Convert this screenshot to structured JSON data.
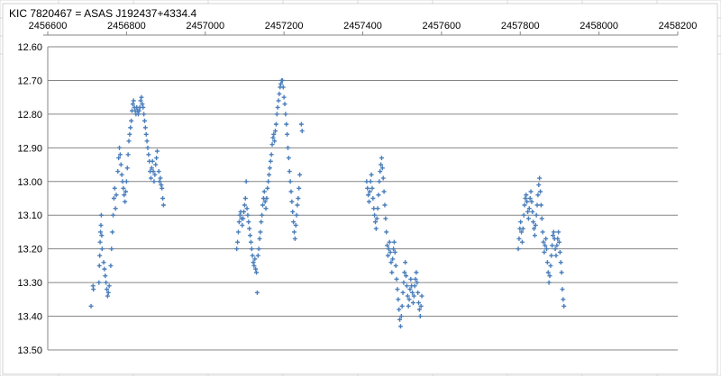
{
  "chart_data": {
    "type": "scatter",
    "title": "KIC 7820467 = ASAS J192437+4334.4",
    "xlabel": "",
    "ylabel": "",
    "xlim": [
      2456600,
      2458200
    ],
    "ylim": [
      12.6,
      13.5
    ],
    "y_inverted": true,
    "x_axis_position": "top",
    "grid": "horizontal",
    "legend": "none",
    "x_ticks": [
      "2456600",
      "2456800",
      "2457000",
      "2457200",
      "2457400",
      "2457600",
      "2457800",
      "2458000",
      "2458200"
    ],
    "y_ticks": [
      "12.60",
      "12.70",
      "12.80",
      "12.90",
      "13.00",
      "13.10",
      "13.20",
      "13.30",
      "13.40",
      "13.50"
    ],
    "colors": {
      "marker": "#4a7ebb",
      "grid": "#868686",
      "axis": "#868686",
      "sheet_grid": "#d9d9d9"
    },
    "series": [
      {
        "marker": "plus",
        "points": [
          [
            2456710,
            13.37
          ],
          [
            2456715,
            13.31
          ],
          [
            2456716,
            13.32
          ],
          [
            2456730,
            13.3
          ],
          [
            2456731,
            13.25
          ],
          [
            2456732,
            13.22
          ],
          [
            2456733,
            13.18
          ],
          [
            2456734,
            13.15
          ],
          [
            2456735,
            13.13
          ],
          [
            2456736,
            13.1
          ],
          [
            2456737,
            13.16
          ],
          [
            2456738,
            13.2
          ],
          [
            2456742,
            13.24
          ],
          [
            2456744,
            13.26
          ],
          [
            2456746,
            13.28
          ],
          [
            2456748,
            13.3
          ],
          [
            2456750,
            13.32
          ],
          [
            2456752,
            13.34
          ],
          [
            2456754,
            13.33
          ],
          [
            2456756,
            13.31
          ],
          [
            2456760,
            13.25
          ],
          [
            2456762,
            13.2
          ],
          [
            2456764,
            13.15
          ],
          [
            2456766,
            13.1
          ],
          [
            2456768,
            13.05
          ],
          [
            2456770,
            13.02
          ],
          [
            2456772,
            13.08
          ],
          [
            2456774,
            13.04
          ],
          [
            2456778,
            12.97
          ],
          [
            2456780,
            12.93
          ],
          [
            2456782,
            12.9
          ],
          [
            2456784,
            12.92
          ],
          [
            2456786,
            12.95
          ],
          [
            2456788,
            12.98
          ],
          [
            2456790,
            13.0
          ],
          [
            2456792,
            13.02
          ],
          [
            2456794,
            13.04
          ],
          [
            2456796,
            13.06
          ],
          [
            2456798,
            13.03
          ],
          [
            2456800,
            13.0
          ],
          [
            2456802,
            12.96
          ],
          [
            2456804,
            12.92
          ],
          [
            2456806,
            12.88
          ],
          [
            2456808,
            12.86
          ],
          [
            2456810,
            12.84
          ],
          [
            2456812,
            12.82
          ],
          [
            2456814,
            12.79
          ],
          [
            2456816,
            12.77
          ],
          [
            2456818,
            12.76
          ],
          [
            2456820,
            12.78
          ],
          [
            2456822,
            12.79
          ],
          [
            2456824,
            12.8
          ],
          [
            2456826,
            12.78
          ],
          [
            2456828,
            12.79
          ],
          [
            2456830,
            12.8
          ],
          [
            2456832,
            12.79
          ],
          [
            2456834,
            12.78
          ],
          [
            2456836,
            12.76
          ],
          [
            2456838,
            12.75
          ],
          [
            2456840,
            12.77
          ],
          [
            2456842,
            12.78
          ],
          [
            2456844,
            12.8
          ],
          [
            2456846,
            12.82
          ],
          [
            2456848,
            12.84
          ],
          [
            2456850,
            12.86
          ],
          [
            2456852,
            12.88
          ],
          [
            2456854,
            12.9
          ],
          [
            2456856,
            12.92
          ],
          [
            2456858,
            12.94
          ],
          [
            2456860,
            12.97
          ],
          [
            2456862,
            12.99
          ],
          [
            2456864,
            12.96
          ],
          [
            2456866,
            12.94
          ],
          [
            2456868,
            12.97
          ],
          [
            2456870,
            13.0
          ],
          [
            2456872,
            12.98
          ],
          [
            2456874,
            12.95
          ],
          [
            2456876,
            12.93
          ],
          [
            2456878,
            12.91
          ],
          [
            2456882,
            12.97
          ],
          [
            2456884,
            13.0
          ],
          [
            2456886,
            12.99
          ],
          [
            2456888,
            13.01
          ],
          [
            2456890,
            13.02
          ],
          [
            2456892,
            13.05
          ],
          [
            2456894,
            13.07
          ],
          [
            2457080,
            13.2
          ],
          [
            2457082,
            13.18
          ],
          [
            2457084,
            13.15
          ],
          [
            2457086,
            13.12
          ],
          [
            2457088,
            13.1
          ],
          [
            2457090,
            13.09
          ],
          [
            2457092,
            13.11
          ],
          [
            2457094,
            13.13
          ],
          [
            2457096,
            13.11
          ],
          [
            2457098,
            13.09
          ],
          [
            2457100,
            13.07
          ],
          [
            2457102,
            13.05
          ],
          [
            2457104,
            13.0
          ],
          [
            2457106,
            13.08
          ],
          [
            2457108,
            13.1
          ],
          [
            2457110,
            13.12
          ],
          [
            2457112,
            13.14
          ],
          [
            2457114,
            13.16
          ],
          [
            2457116,
            13.18
          ],
          [
            2457118,
            13.2
          ],
          [
            2457120,
            13.22
          ],
          [
            2457122,
            13.24
          ],
          [
            2457124,
            13.25
          ],
          [
            2457126,
            13.23
          ],
          [
            2457128,
            13.26
          ],
          [
            2457130,
            13.27
          ],
          [
            2457132,
            13.33
          ],
          [
            2457134,
            13.22
          ],
          [
            2457136,
            13.2
          ],
          [
            2457138,
            13.17
          ],
          [
            2457140,
            13.15
          ],
          [
            2457142,
            13.12
          ],
          [
            2457144,
            13.1
          ],
          [
            2457146,
            13.07
          ],
          [
            2457148,
            13.05
          ],
          [
            2457150,
            13.03
          ],
          [
            2457152,
            13.06
          ],
          [
            2457154,
            13.08
          ],
          [
            2457156,
            13.05
          ],
          [
            2457158,
            13.02
          ],
          [
            2457160,
            13.0
          ],
          [
            2457162,
            12.98
          ],
          [
            2457164,
            12.96
          ],
          [
            2457166,
            12.94
          ],
          [
            2457168,
            12.92
          ],
          [
            2457170,
            12.89
          ],
          [
            2457172,
            12.87
          ],
          [
            2457174,
            12.86
          ],
          [
            2457176,
            12.88
          ],
          [
            2457178,
            12.85
          ],
          [
            2457180,
            12.83
          ],
          [
            2457182,
            12.8
          ],
          [
            2457184,
            12.78
          ],
          [
            2457186,
            12.76
          ],
          [
            2457188,
            12.74
          ],
          [
            2457190,
            12.72
          ],
          [
            2457192,
            12.71
          ],
          [
            2457194,
            12.7
          ],
          [
            2457196,
            12.7
          ],
          [
            2457198,
            12.72
          ],
          [
            2457200,
            12.75
          ],
          [
            2457202,
            12.77
          ],
          [
            2457204,
            12.8
          ],
          [
            2457206,
            12.83
          ],
          [
            2457208,
            12.86
          ],
          [
            2457210,
            12.9
          ],
          [
            2457212,
            12.93
          ],
          [
            2457214,
            12.97
          ],
          [
            2457216,
            13.0
          ],
          [
            2457218,
            13.03
          ],
          [
            2457220,
            13.06
          ],
          [
            2457222,
            13.09
          ],
          [
            2457224,
            13.12
          ],
          [
            2457226,
            13.15
          ],
          [
            2457228,
            13.17
          ],
          [
            2457230,
            13.13
          ],
          [
            2457232,
            13.1
          ],
          [
            2457234,
            13.07
          ],
          [
            2457236,
            13.05
          ],
          [
            2457238,
            13.02
          ],
          [
            2457240,
            12.98
          ],
          [
            2457244,
            12.83
          ],
          [
            2457246,
            12.85
          ],
          [
            2457410,
            13.0
          ],
          [
            2457412,
            13.02
          ],
          [
            2457414,
            13.04
          ],
          [
            2457416,
            13.06
          ],
          [
            2457418,
            13.03
          ],
          [
            2457420,
            13.0
          ],
          [
            2457422,
            12.98
          ],
          [
            2457424,
            13.02
          ],
          [
            2457426,
            13.05
          ],
          [
            2457428,
            13.08
          ],
          [
            2457430,
            13.1
          ],
          [
            2457432,
            13.12
          ],
          [
            2457434,
            13.14
          ],
          [
            2457436,
            13.11
          ],
          [
            2457438,
            13.08
          ],
          [
            2457440,
            13.04
          ],
          [
            2457442,
            13.0
          ],
          [
            2457444,
            12.97
          ],
          [
            2457446,
            12.95
          ],
          [
            2457448,
            12.93
          ],
          [
            2457450,
            12.96
          ],
          [
            2457452,
            12.99
          ],
          [
            2457454,
            13.03
          ],
          [
            2457456,
            13.07
          ],
          [
            2457458,
            13.11
          ],
          [
            2457460,
            13.15
          ],
          [
            2457462,
            13.19
          ],
          [
            2457464,
            13.22
          ],
          [
            2457466,
            13.2
          ],
          [
            2457468,
            13.18
          ],
          [
            2457470,
            13.21
          ],
          [
            2457472,
            13.24
          ],
          [
            2457474,
            13.27
          ],
          [
            2457476,
            13.23
          ],
          [
            2457478,
            13.2
          ],
          [
            2457480,
            13.18
          ],
          [
            2457482,
            13.21
          ],
          [
            2457484,
            13.25
          ],
          [
            2457486,
            13.29
          ],
          [
            2457488,
            13.32
          ],
          [
            2457490,
            13.35
          ],
          [
            2457492,
            13.38
          ],
          [
            2457494,
            13.41
          ],
          [
            2457496,
            13.43
          ],
          [
            2457498,
            13.4
          ],
          [
            2457500,
            13.37
          ],
          [
            2457502,
            13.33
          ],
          [
            2457504,
            13.3
          ],
          [
            2457506,
            13.27
          ],
          [
            2457508,
            13.24
          ],
          [
            2457510,
            13.28
          ],
          [
            2457512,
            13.31
          ],
          [
            2457514,
            13.34
          ],
          [
            2457516,
            13.37
          ],
          [
            2457518,
            13.35
          ],
          [
            2457520,
            13.32
          ],
          [
            2457522,
            13.29
          ],
          [
            2457524,
            13.31
          ],
          [
            2457526,
            13.33
          ],
          [
            2457528,
            13.36
          ],
          [
            2457530,
            13.34
          ],
          [
            2457532,
            13.31
          ],
          [
            2457534,
            13.29
          ],
          [
            2457536,
            13.27
          ],
          [
            2457538,
            13.3
          ],
          [
            2457540,
            13.33
          ],
          [
            2457542,
            13.36
          ],
          [
            2457544,
            13.38
          ],
          [
            2457546,
            13.4
          ],
          [
            2457548,
            13.37
          ],
          [
            2457550,
            13.34
          ],
          [
            2457795,
            13.2
          ],
          [
            2457797,
            13.17
          ],
          [
            2457799,
            13.14
          ],
          [
            2457801,
            13.12
          ],
          [
            2457803,
            13.15
          ],
          [
            2457805,
            13.18
          ],
          [
            2457807,
            13.14
          ],
          [
            2457809,
            13.1
          ],
          [
            2457811,
            13.07
          ],
          [
            2457813,
            13.05
          ],
          [
            2457815,
            13.04
          ],
          [
            2457817,
            13.06
          ],
          [
            2457819,
            13.09
          ],
          [
            2457821,
            13.11
          ],
          [
            2457823,
            13.08
          ],
          [
            2457825,
            13.05
          ],
          [
            2457827,
            13.03
          ],
          [
            2457829,
            13.06
          ],
          [
            2457831,
            13.09
          ],
          [
            2457833,
            13.12
          ],
          [
            2457835,
            13.14
          ],
          [
            2457837,
            13.16
          ],
          [
            2457839,
            13.13
          ],
          [
            2457841,
            13.1
          ],
          [
            2457843,
            13.07
          ],
          [
            2457845,
            13.04
          ],
          [
            2457847,
            13.01
          ],
          [
            2457849,
            12.99
          ],
          [
            2457851,
            13.03
          ],
          [
            2457853,
            13.07
          ],
          [
            2457855,
            13.11
          ],
          [
            2457857,
            13.15
          ],
          [
            2457859,
            13.18
          ],
          [
            2457861,
            13.21
          ],
          [
            2457863,
            13.19
          ],
          [
            2457865,
            13.17
          ],
          [
            2457867,
            13.2
          ],
          [
            2457869,
            13.24
          ],
          [
            2457871,
            13.27
          ],
          [
            2457873,
            13.3
          ],
          [
            2457875,
            13.28
          ],
          [
            2457877,
            13.25
          ],
          [
            2457879,
            13.22
          ],
          [
            2457881,
            13.19
          ],
          [
            2457883,
            13.16
          ],
          [
            2457885,
            13.15
          ],
          [
            2457887,
            13.17
          ],
          [
            2457889,
            13.2
          ],
          [
            2457891,
            13.22
          ],
          [
            2457893,
            13.19
          ],
          [
            2457895,
            13.17
          ],
          [
            2457897,
            13.15
          ],
          [
            2457899,
            13.18
          ],
          [
            2457901,
            13.21
          ],
          [
            2457903,
            13.24
          ],
          [
            2457905,
            13.27
          ],
          [
            2457907,
            13.32
          ],
          [
            2457909,
            13.35
          ],
          [
            2457911,
            13.37
          ]
        ]
      }
    ]
  }
}
